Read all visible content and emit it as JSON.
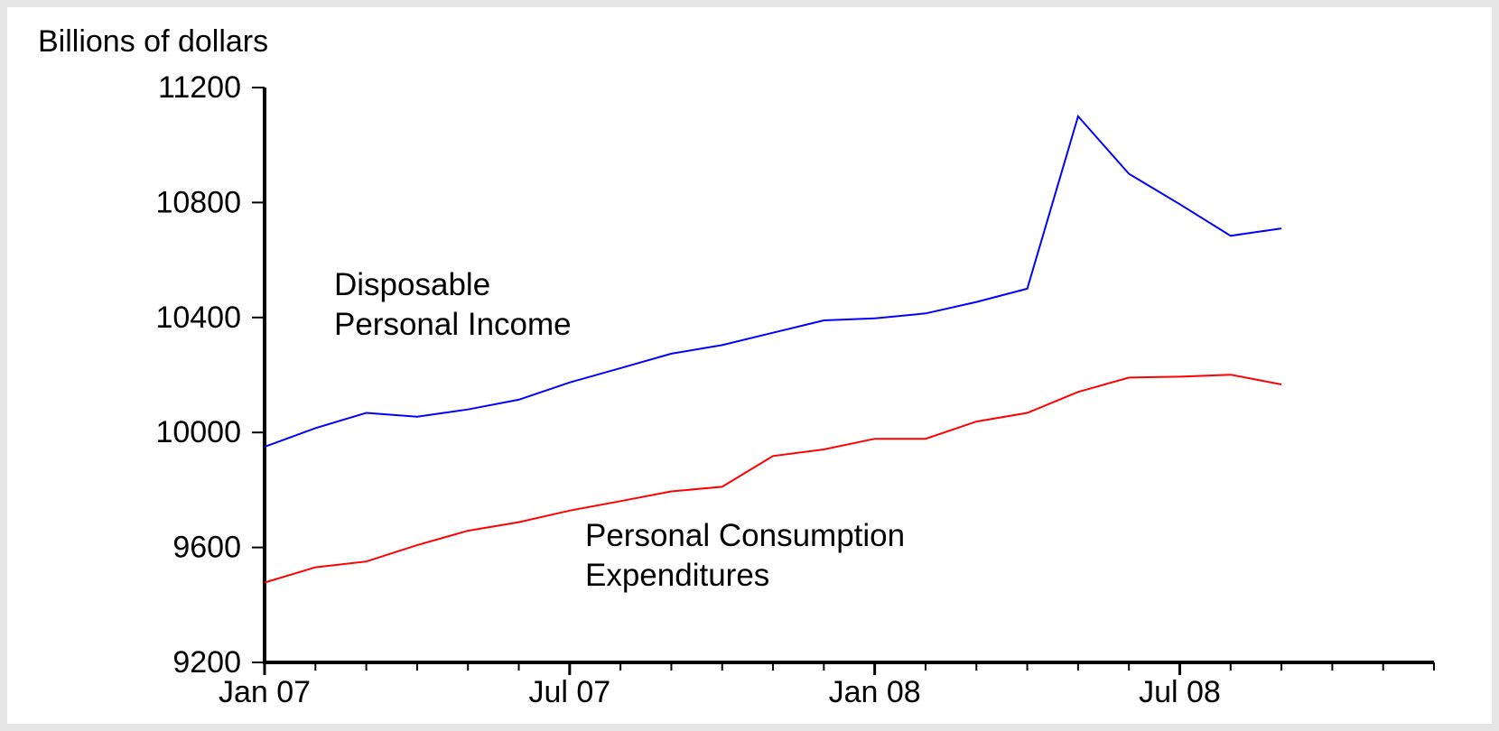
{
  "chart_data": {
    "type": "line",
    "y_label": "Billions of dollars",
    "x": [
      "2007-01",
      "2007-02",
      "2007-03",
      "2007-04",
      "2007-05",
      "2007-06",
      "2007-07",
      "2007-08",
      "2007-09",
      "2007-10",
      "2007-11",
      "2007-12",
      "2008-01",
      "2008-02",
      "2008-03",
      "2008-04",
      "2008-05",
      "2008-06",
      "2008-07",
      "2008-08",
      "2008-09"
    ],
    "series": [
      {
        "name": [
          "Disposable",
          "Personal Income"
        ],
        "color": "#0000ff",
        "values": [
          9950,
          10015,
          10068,
          10055,
          10080,
          10114,
          10174,
          10224,
          10274,
          10304,
          10347,
          10390,
          10397,
          10414,
          10454,
          10500,
          11100,
          10900,
          10794,
          10684,
          10710
        ]
      },
      {
        "name": [
          "Personal Consumption",
          "Expenditures"
        ],
        "color": "#ff0000",
        "values": [
          9478,
          9531,
          9551,
          9608,
          9658,
          9688,
          9728,
          9761,
          9795,
          9811,
          9918,
          9941,
          9978,
          9978,
          10038,
          10068,
          10141,
          10191,
          10194,
          10201,
          10167
        ]
      }
    ],
    "xlim": [
      "2007-01",
      "2008-12"
    ],
    "xticks": [
      {
        "value": "2007-01",
        "label": "Jan 07"
      },
      {
        "value": "2007-07",
        "label": "Jul 07"
      },
      {
        "value": "2008-01",
        "label": "Jan 08"
      },
      {
        "value": "2008-07",
        "label": "Jul 08"
      }
    ],
    "ylim": [
      9200,
      11200
    ],
    "yticks": [
      9200,
      9600,
      10000,
      10400,
      10800,
      11200
    ]
  }
}
